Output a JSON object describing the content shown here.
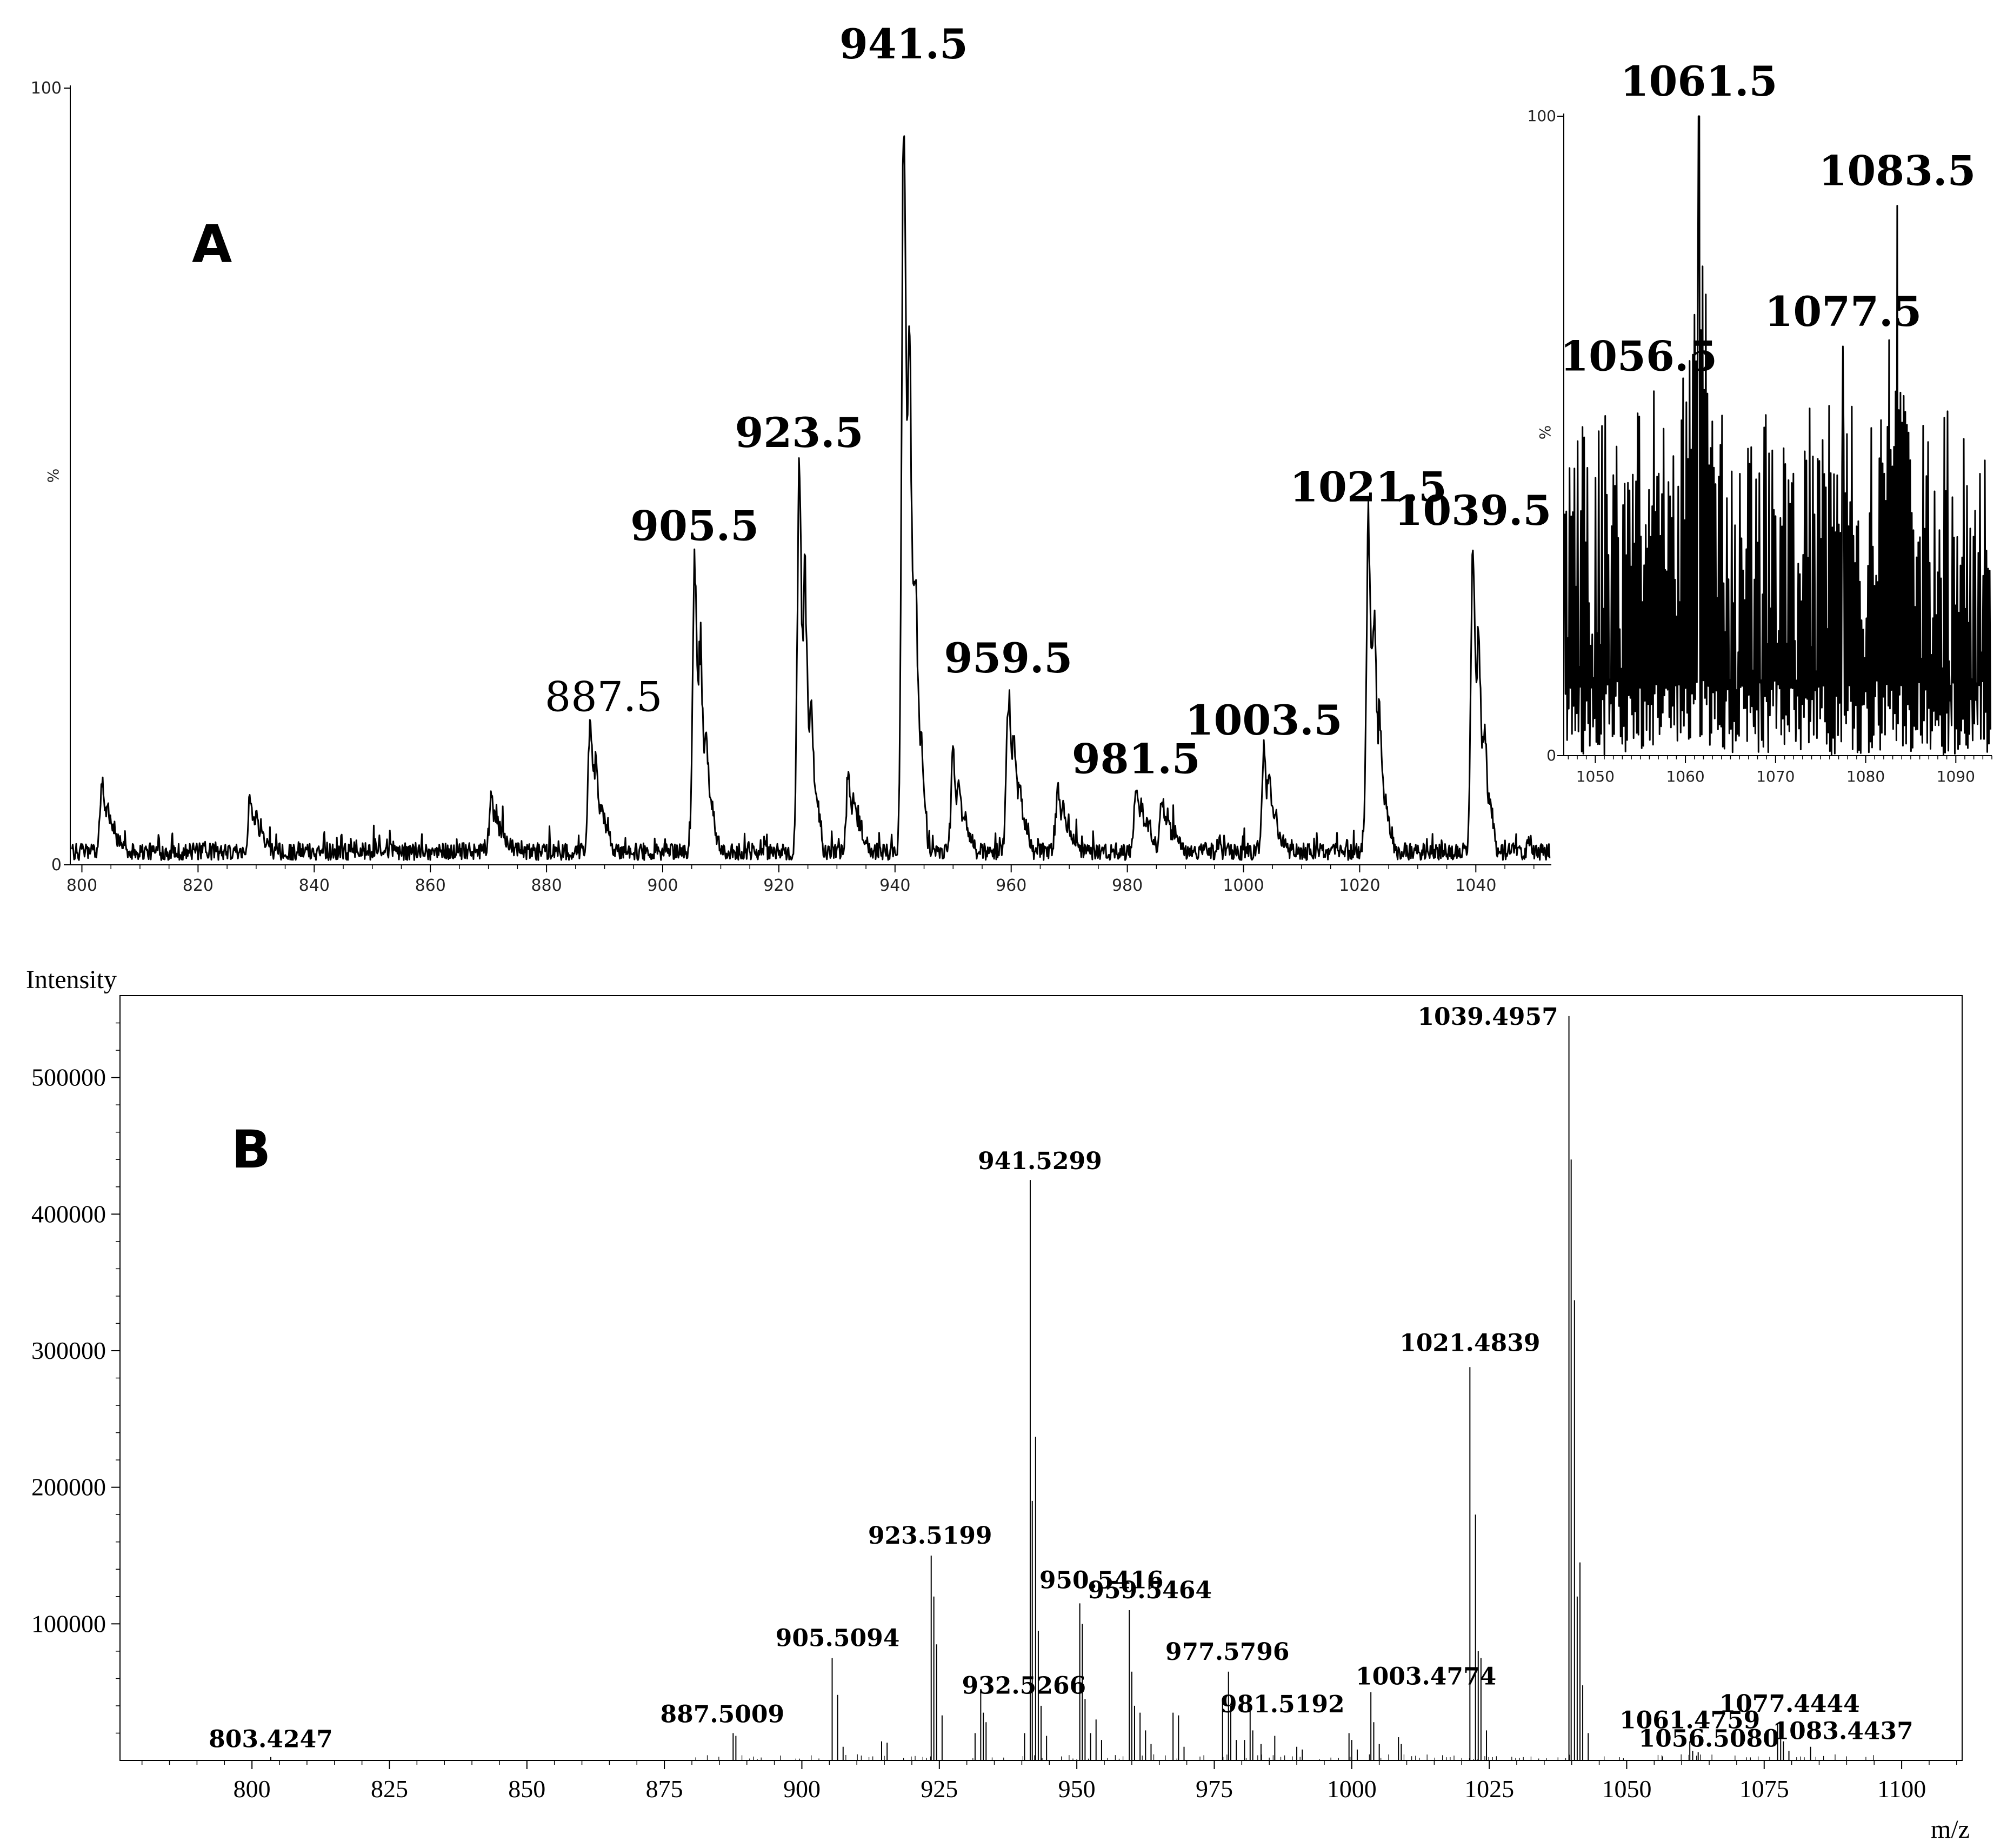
{
  "chart_data": [
    {
      "type": "line",
      "panel_label": "A",
      "y_axis_label": "%",
      "xlim": [
        798,
        1053
      ],
      "ylim": [
        0,
        100
      ],
      "x_ticks": [
        800,
        820,
        840,
        860,
        880,
        900,
        920,
        940,
        960,
        980,
        1000,
        1020,
        1040
      ],
      "y_ticks": [
        0,
        100
      ],
      "grid": false,
      "peaks": [
        {
          "x": 803.5,
          "y": 9,
          "label": ""
        },
        {
          "x": 829,
          "y": 7,
          "label": ""
        },
        {
          "x": 870.5,
          "y": 7,
          "label": ""
        },
        {
          "x": 887.5,
          "y": 17,
          "label": "887.5",
          "bold": false
        },
        {
          "x": 905.5,
          "y": 39,
          "label": "905.5",
          "bold": true
        },
        {
          "x": 923.5,
          "y": 51,
          "label": "923.5",
          "bold": true
        },
        {
          "x": 932,
          "y": 10,
          "label": ""
        },
        {
          "x": 941.5,
          "y": 100,
          "label": "941.5",
          "bold": true
        },
        {
          "x": 950,
          "y": 13,
          "label": ""
        },
        {
          "x": 959.5,
          "y": 22,
          "label": "959.5",
          "bold": true
        },
        {
          "x": 968,
          "y": 8,
          "label": ""
        },
        {
          "x": 981.5,
          "y": 9,
          "label": "981.5",
          "bold": true
        },
        {
          "x": 986,
          "y": 7,
          "label": ""
        },
        {
          "x": 1003.5,
          "y": 14,
          "label": "1003.5",
          "bold": true
        },
        {
          "x": 1021.5,
          "y": 44,
          "label": "1021.5",
          "bold": true
        },
        {
          "x": 1039.5,
          "y": 41,
          "label": "1039.5",
          "bold": true
        }
      ],
      "inset": {
        "type": "line",
        "y_axis_label": "%",
        "xlim": [
          1046.5,
          1094
        ],
        "ylim": [
          0,
          100
        ],
        "x_ticks": [
          1050,
          1060,
          1070,
          1080,
          1090
        ],
        "y_ticks": [
          0,
          100
        ],
        "peaks": [
          {
            "x": 1056.5,
            "y": 57,
            "label": "1056.5"
          },
          {
            "x": 1061.5,
            "y": 100,
            "label": "1061.5"
          },
          {
            "x": 1077.5,
            "y": 64,
            "label": "1077.5"
          },
          {
            "x": 1083.5,
            "y": 86,
            "label": "1083.5"
          }
        ]
      }
    },
    {
      "type": "bar",
      "panel_label": "B",
      "y_axis_label": "Intensity",
      "x_axis_label": "m/z",
      "xlim": [
        776,
        1111
      ],
      "ylim": [
        0,
        560000
      ],
      "x_ticks": [
        800,
        825,
        850,
        875,
        900,
        925,
        950,
        975,
        1000,
        1025,
        1050,
        1075,
        1100
      ],
      "y_ticks": [
        100000,
        200000,
        300000,
        400000,
        500000
      ],
      "grid": false,
      "peaks": [
        {
          "x": 803.4247,
          "y": 2500,
          "label": "803.4247"
        },
        {
          "x": 887.5009,
          "y": 20000,
          "label": "887.5009"
        },
        {
          "x": 905.5094,
          "y": 75000,
          "label": "905.5094"
        },
        {
          "x": 923.5199,
          "y": 150000,
          "label": "923.5199"
        },
        {
          "x": 932.5266,
          "y": 52000,
          "label": "932.5266"
        },
        {
          "x": 941.5299,
          "y": 425000,
          "label": "941.5299"
        },
        {
          "x": 950.5416,
          "y": 115000,
          "label": "950.5416"
        },
        {
          "x": 959.5464,
          "y": 110000,
          "label": "959.5464"
        },
        {
          "x": 977.5796,
          "y": 65000,
          "label": "977.5796"
        },
        {
          "x": 981.5192,
          "y": 40000,
          "label": "981.5192"
        },
        {
          "x": 1003.4774,
          "y": 50000,
          "label": "1003.4774"
        },
        {
          "x": 1021.4839,
          "y": 288000,
          "label": "1021.4839"
        },
        {
          "x": 1039.4957,
          "y": 545000,
          "label": "1039.4957"
        },
        {
          "x": 1056.508,
          "y": 3000,
          "label": "1056.5080"
        },
        {
          "x": 1061.4759,
          "y": 14000,
          "label": "1061.4759"
        },
        {
          "x": 1077.4444,
          "y": 27000,
          "label": "1077.4444"
        },
        {
          "x": 1083.4437,
          "y": 10000,
          "label": "1083.4437"
        }
      ],
      "minor_peaks": [
        {
          "x": 888.0,
          "y": 18000
        },
        {
          "x": 906.5,
          "y": 48000
        },
        {
          "x": 907.5,
          "y": 10000
        },
        {
          "x": 914.5,
          "y": 14000
        },
        {
          "x": 915.5,
          "y": 13000
        },
        {
          "x": 924.0,
          "y": 120000
        },
        {
          "x": 924.5,
          "y": 85000
        },
        {
          "x": 925.5,
          "y": 33000
        },
        {
          "x": 931.5,
          "y": 20000
        },
        {
          "x": 933.0,
          "y": 35000
        },
        {
          "x": 933.5,
          "y": 28000
        },
        {
          "x": 940.5,
          "y": 20000
        },
        {
          "x": 941.9,
          "y": 190000
        },
        {
          "x": 942.5,
          "y": 237000
        },
        {
          "x": 943.0,
          "y": 95000
        },
        {
          "x": 943.5,
          "y": 40000
        },
        {
          "x": 944.5,
          "y": 18000
        },
        {
          "x": 951.0,
          "y": 100000
        },
        {
          "x": 951.5,
          "y": 45000
        },
        {
          "x": 952.5,
          "y": 20000
        },
        {
          "x": 953.5,
          "y": 30000
        },
        {
          "x": 954.5,
          "y": 15000
        },
        {
          "x": 960.0,
          "y": 65000
        },
        {
          "x": 960.5,
          "y": 40000
        },
        {
          "x": 961.5,
          "y": 35000
        },
        {
          "x": 962.5,
          "y": 22000
        },
        {
          "x": 963.5,
          "y": 12000
        },
        {
          "x": 967.5,
          "y": 35000
        },
        {
          "x": 968.5,
          "y": 33000
        },
        {
          "x": 969.5,
          "y": 10000
        },
        {
          "x": 976.5,
          "y": 45000
        },
        {
          "x": 978.0,
          "y": 40000
        },
        {
          "x": 979.0,
          "y": 15000
        },
        {
          "x": 980.5,
          "y": 15000
        },
        {
          "x": 982.0,
          "y": 22000
        },
        {
          "x": 983.5,
          "y": 12000
        },
        {
          "x": 986.0,
          "y": 18000
        },
        {
          "x": 990.0,
          "y": 10000
        },
        {
          "x": 991.0,
          "y": 8000
        },
        {
          "x": 999.5,
          "y": 20000
        },
        {
          "x": 1000.0,
          "y": 15000
        },
        {
          "x": 1001.0,
          "y": 8000
        },
        {
          "x": 1004.0,
          "y": 28000
        },
        {
          "x": 1005.0,
          "y": 12000
        },
        {
          "x": 1008.5,
          "y": 17000
        },
        {
          "x": 1009.0,
          "y": 12000
        },
        {
          "x": 1022.5,
          "y": 180000
        },
        {
          "x": 1023.0,
          "y": 80000
        },
        {
          "x": 1023.5,
          "y": 75000
        },
        {
          "x": 1024.5,
          "y": 22000
        },
        {
          "x": 1039.9,
          "y": 440000
        },
        {
          "x": 1040.5,
          "y": 337000
        },
        {
          "x": 1041.0,
          "y": 120000
        },
        {
          "x": 1041.5,
          "y": 145000
        },
        {
          "x": 1042.0,
          "y": 55000
        },
        {
          "x": 1043.0,
          "y": 20000
        },
        {
          "x": 1062.0,
          "y": 7000
        },
        {
          "x": 1063.0,
          "y": 6000
        },
        {
          "x": 1078.0,
          "y": 20000
        },
        {
          "x": 1078.5,
          "y": 14000
        },
        {
          "x": 1079.5,
          "y": 7000
        }
      ]
    }
  ]
}
